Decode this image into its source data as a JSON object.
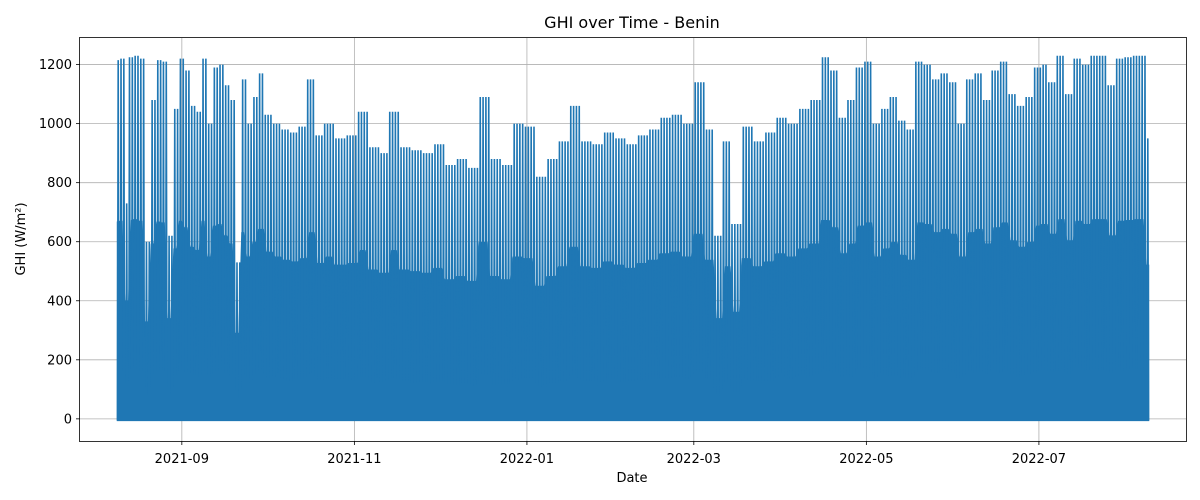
{
  "chart_data": {
    "type": "line",
    "title": "GHI over Time - Benin",
    "xlabel": "Date",
    "ylabel": "GHI (W/m²)",
    "xlim": [
      "2021-07-27",
      "2022-08-22"
    ],
    "ylim": [
      -75,
      1290
    ],
    "x_ticks": [
      {
        "date": "2021-09-01",
        "label": "2021-09"
      },
      {
        "date": "2021-11-01",
        "label": "2021-11"
      },
      {
        "date": "2022-01-01",
        "label": "2022-01"
      },
      {
        "date": "2022-03-01",
        "label": "2022-03"
      },
      {
        "date": "2022-05-01",
        "label": "2022-05"
      },
      {
        "date": "2022-07-01",
        "label": "2022-07"
      }
    ],
    "y_ticks": [
      0,
      200,
      400,
      600,
      800,
      1000,
      1200
    ],
    "grid": true,
    "series_color": "#1f77b4",
    "series": [
      {
        "date_range": [
          "2021-08-09",
          "2022-08-09"
        ],
        "daily_min": -5,
        "daily_peak_points": [
          [
            "2021-08-09",
            1215
          ],
          [
            "2021-08-11",
            1220
          ],
          [
            "2021-08-13",
            730
          ],
          [
            "2021-08-14",
            1225
          ],
          [
            "2021-08-16",
            1230
          ],
          [
            "2021-08-18",
            1220
          ],
          [
            "2021-08-20",
            600
          ],
          [
            "2021-08-22",
            1080
          ],
          [
            "2021-08-24",
            1215
          ],
          [
            "2021-08-26",
            1210
          ],
          [
            "2021-08-28",
            620
          ],
          [
            "2021-08-30",
            1050
          ],
          [
            "2021-09-01",
            1220
          ],
          [
            "2021-09-03",
            1180
          ],
          [
            "2021-09-05",
            1060
          ],
          [
            "2021-09-07",
            1040
          ],
          [
            "2021-09-09",
            1220
          ],
          [
            "2021-09-11",
            1000
          ],
          [
            "2021-09-13",
            1190
          ],
          [
            "2021-09-15",
            1200
          ],
          [
            "2021-09-17",
            1130
          ],
          [
            "2021-09-19",
            1080
          ],
          [
            "2021-09-21",
            530
          ],
          [
            "2021-09-23",
            1150
          ],
          [
            "2021-09-25",
            1000
          ],
          [
            "2021-09-27",
            1090
          ],
          [
            "2021-09-29",
            1170
          ],
          [
            "2021-10-02",
            1030
          ],
          [
            "2021-10-05",
            1000
          ],
          [
            "2021-10-08",
            980
          ],
          [
            "2021-10-11",
            970
          ],
          [
            "2021-10-14",
            990
          ],
          [
            "2021-10-17",
            1150
          ],
          [
            "2021-10-20",
            960
          ],
          [
            "2021-10-23",
            1000
          ],
          [
            "2021-10-27",
            950
          ],
          [
            "2021-11-01",
            960
          ],
          [
            "2021-11-04",
            1040
          ],
          [
            "2021-11-08",
            920
          ],
          [
            "2021-11-12",
            900
          ],
          [
            "2021-11-15",
            1040
          ],
          [
            "2021-11-19",
            920
          ],
          [
            "2021-11-23",
            910
          ],
          [
            "2021-11-27",
            900
          ],
          [
            "2021-12-01",
            930
          ],
          [
            "2021-12-05",
            860
          ],
          [
            "2021-12-09",
            880
          ],
          [
            "2021-12-13",
            850
          ],
          [
            "2021-12-17",
            1090
          ],
          [
            "2021-12-21",
            880
          ],
          [
            "2021-12-25",
            860
          ],
          [
            "2021-12-29",
            1000
          ],
          [
            "2022-01-02",
            990
          ],
          [
            "2022-01-06",
            820
          ],
          [
            "2022-01-10",
            880
          ],
          [
            "2022-01-14",
            940
          ],
          [
            "2022-01-18",
            1060
          ],
          [
            "2022-01-22",
            940
          ],
          [
            "2022-01-26",
            930
          ],
          [
            "2022-01-30",
            970
          ],
          [
            "2022-02-03",
            950
          ],
          [
            "2022-02-07",
            930
          ],
          [
            "2022-02-11",
            960
          ],
          [
            "2022-02-15",
            980
          ],
          [
            "2022-02-19",
            1020
          ],
          [
            "2022-02-23",
            1030
          ],
          [
            "2022-02-27",
            1000
          ],
          [
            "2022-03-03",
            1140
          ],
          [
            "2022-03-07",
            980
          ],
          [
            "2022-03-10",
            620
          ],
          [
            "2022-03-13",
            940
          ],
          [
            "2022-03-16",
            660
          ],
          [
            "2022-03-20",
            990
          ],
          [
            "2022-03-24",
            940
          ],
          [
            "2022-03-28",
            970
          ],
          [
            "2022-04-01",
            1020
          ],
          [
            "2022-04-05",
            1000
          ],
          [
            "2022-04-09",
            1050
          ],
          [
            "2022-04-13",
            1080
          ],
          [
            "2022-04-17",
            1225
          ],
          [
            "2022-04-20",
            1180
          ],
          [
            "2022-04-23",
            1020
          ],
          [
            "2022-04-26",
            1080
          ],
          [
            "2022-04-29",
            1190
          ],
          [
            "2022-05-02",
            1210
          ],
          [
            "2022-05-05",
            1000
          ],
          [
            "2022-05-08",
            1050
          ],
          [
            "2022-05-11",
            1090
          ],
          [
            "2022-05-14",
            1010
          ],
          [
            "2022-05-17",
            980
          ],
          [
            "2022-05-20",
            1210
          ],
          [
            "2022-05-23",
            1200
          ],
          [
            "2022-05-26",
            1150
          ],
          [
            "2022-05-29",
            1170
          ],
          [
            "2022-06-01",
            1140
          ],
          [
            "2022-06-04",
            1000
          ],
          [
            "2022-06-07",
            1150
          ],
          [
            "2022-06-10",
            1170
          ],
          [
            "2022-06-13",
            1080
          ],
          [
            "2022-06-16",
            1180
          ],
          [
            "2022-06-19",
            1210
          ],
          [
            "2022-06-22",
            1100
          ],
          [
            "2022-06-25",
            1060
          ],
          [
            "2022-06-28",
            1090
          ],
          [
            "2022-07-01",
            1190
          ],
          [
            "2022-07-03",
            1200
          ],
          [
            "2022-07-06",
            1140
          ],
          [
            "2022-07-09",
            1230
          ],
          [
            "2022-07-12",
            1100
          ],
          [
            "2022-07-15",
            1220
          ],
          [
            "2022-07-18",
            1200
          ],
          [
            "2022-07-21",
            1230
          ],
          [
            "2022-07-24",
            1230
          ],
          [
            "2022-07-27",
            1130
          ],
          [
            "2022-07-30",
            1220
          ],
          [
            "2022-08-02",
            1225
          ],
          [
            "2022-08-05",
            1230
          ],
          [
            "2022-08-07",
            1230
          ],
          [
            "2022-08-09",
            950
          ]
        ]
      }
    ]
  }
}
